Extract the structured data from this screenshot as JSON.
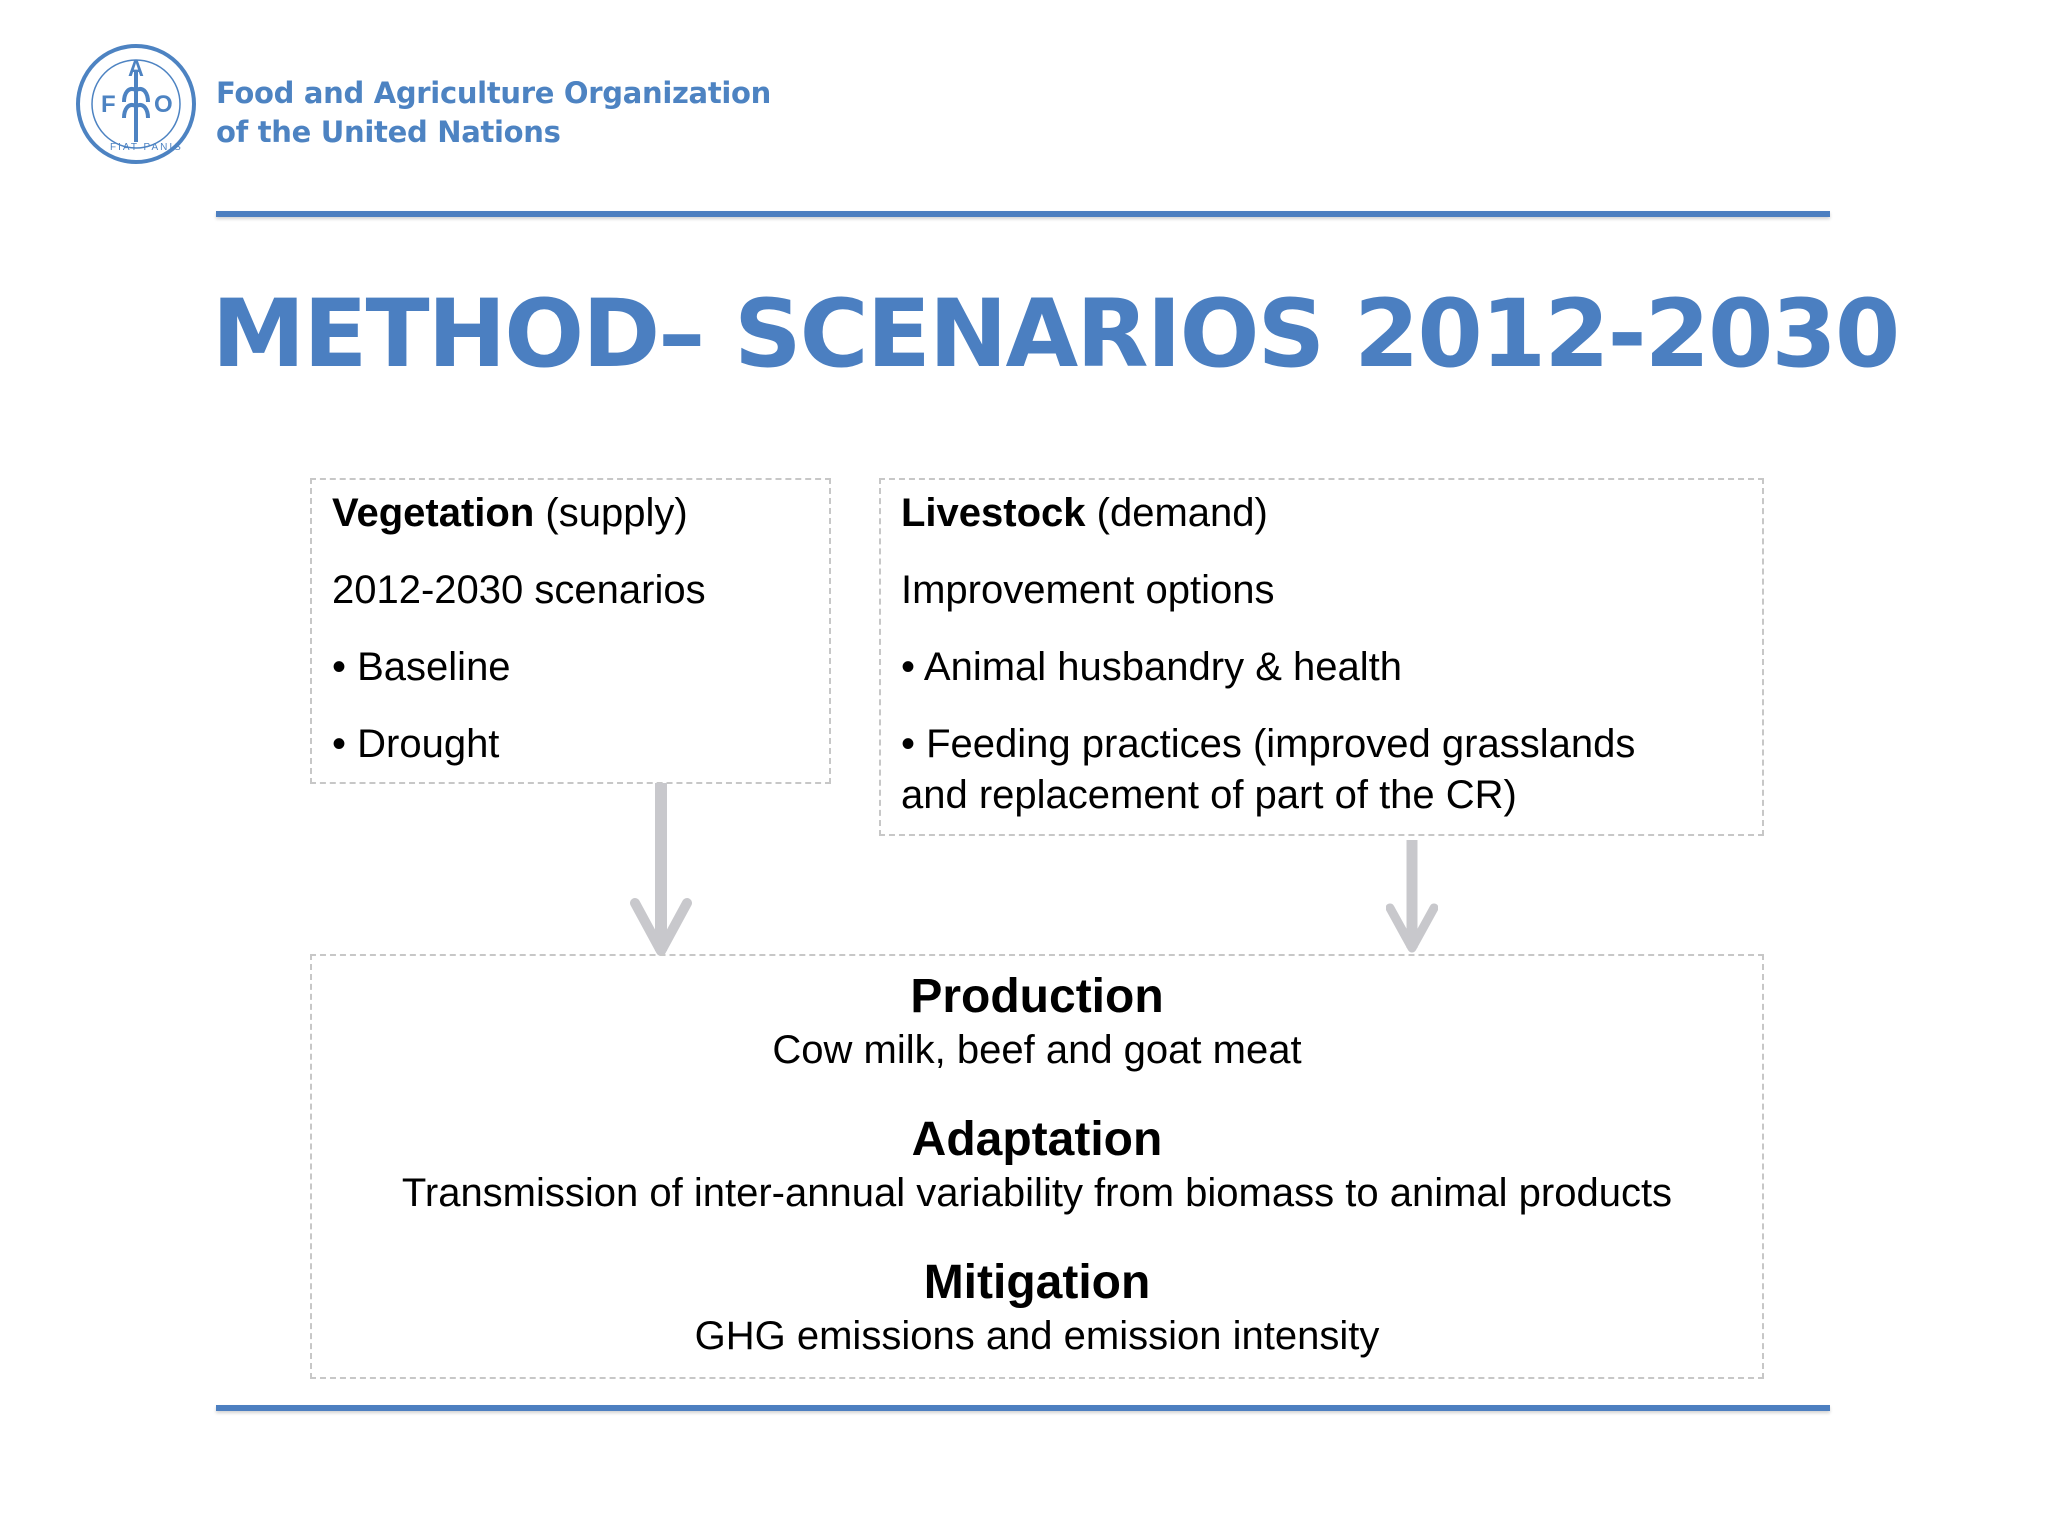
{
  "header": {
    "logo_icon": "fao-emblem-icon",
    "logo_letters": [
      "F",
      "A",
      "O"
    ],
    "logo_motto": "FIAT PANIS",
    "org_name_line1": "Food and Agriculture Organization",
    "org_name_line2": "of the United Nations"
  },
  "slide": {
    "title": "METHOD– SCENARIOS 2012-2030"
  },
  "vegetation": {
    "heading": "Vegetation",
    "heading_suffix": " (supply)",
    "subtitle": "2012-2030 scenarios",
    "items": [
      "• Baseline",
      "• Drought"
    ]
  },
  "livestock": {
    "heading": "Livestock",
    "heading_suffix": " (demand)",
    "subtitle": "Improvement options",
    "items": [
      "• Animal husbandry & health",
      "• Feeding practices (improved grasslands",
      "and replacement of part of the CR)"
    ]
  },
  "outcomes": [
    {
      "heading": "Production",
      "description": "Cow milk, beef and goat meat"
    },
    {
      "heading": "Adaptation",
      "description": "Transmission of inter-annual variability from biomass to animal products"
    },
    {
      "heading": "Mitigation",
      "description": "GHG emissions and emission intensity"
    }
  ],
  "colors": {
    "brand_blue": "#4b7fc1",
    "arrow_gray": "#c8c8cc",
    "box_border": "#c7c7c7"
  }
}
